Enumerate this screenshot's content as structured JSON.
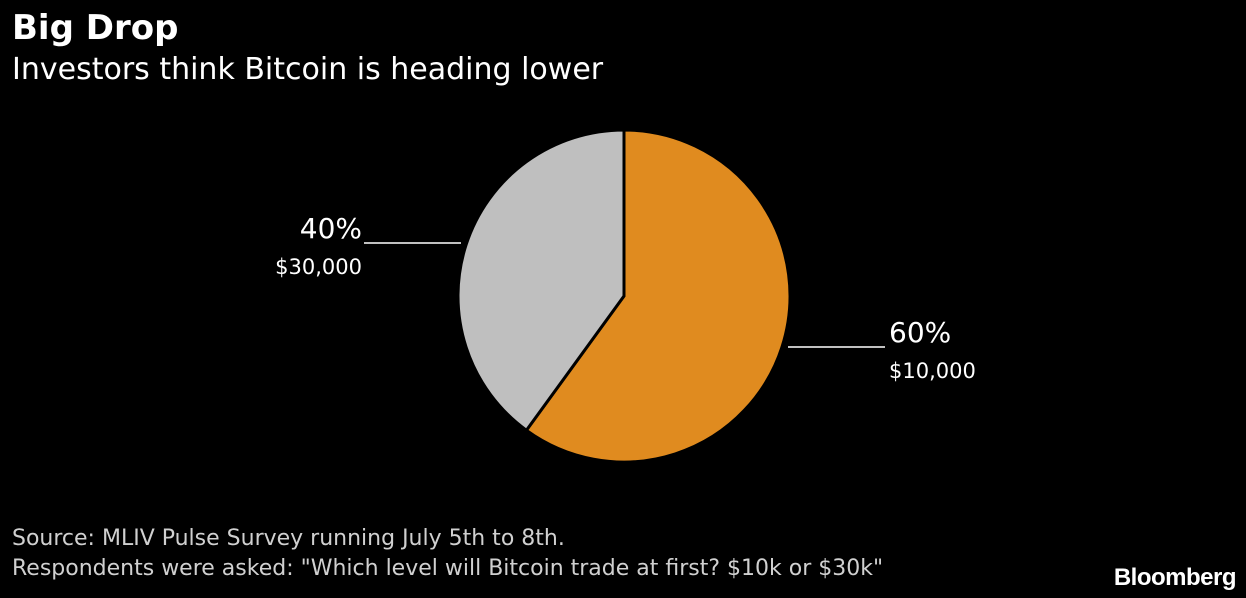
{
  "header": {
    "title": "Big Drop",
    "subtitle": "Investors think Bitcoin is heading lower"
  },
  "chart_data": {
    "type": "pie",
    "title": "Big Drop",
    "subtitle": "Investors think Bitcoin is heading lower",
    "start_angle_deg": 0,
    "direction": "clockwise",
    "slices": [
      {
        "category": "$10,000",
        "value": 60,
        "value_label": "60%",
        "color": "#E08B1F"
      },
      {
        "category": "$30,000",
        "value": 40,
        "value_label": "40%",
        "color": "#BFBFBF"
      }
    ],
    "slice_divider_color": "#000000",
    "leader_line_color": "#FFFFFF",
    "background_color": "#000000"
  },
  "footer": {
    "source": "Source: MLIV Pulse Survey running July 5th to 8th.",
    "note": "Respondents were asked: \"Which level will Bitcoin trade at first? $10k or $30k\""
  },
  "brand": {
    "name": "Bloomberg"
  }
}
